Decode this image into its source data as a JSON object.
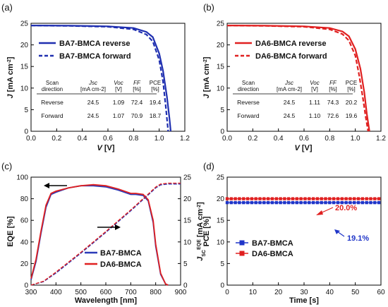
{
  "chart_data": [
    {
      "panel": "(a)",
      "type": "line",
      "xlabel": "V",
      "xunit": "[V]",
      "ylabel": "J",
      "yunit": "[mA cm",
      "yunit_sup": "-2",
      "yunit_end": "]",
      "xlim": [
        0.0,
        1.2
      ],
      "ylim": [
        0,
        25
      ],
      "xticks": [
        "0.0",
        "0.2",
        "0.4",
        "0.6",
        "0.8",
        "1.0",
        "1.2"
      ],
      "yticks": [
        "0",
        "5",
        "10",
        "15",
        "20",
        "25"
      ],
      "series": [
        {
          "name": "BA7-BMCA reverse",
          "color": "#1f2fb0",
          "dash": false,
          "x": [
            0,
            0.3,
            0.6,
            0.8,
            0.9,
            0.95,
            1.0,
            1.03,
            1.06,
            1.08,
            1.09
          ],
          "y": [
            24.5,
            24.45,
            24.3,
            23.9,
            23.0,
            21.8,
            18.0,
            14.0,
            8.0,
            3.0,
            0
          ]
        },
        {
          "name": "BA7-BMCA forward",
          "color": "#1f2fb0",
          "dash": true,
          "x": [
            0,
            0.3,
            0.6,
            0.8,
            0.9,
            0.95,
            1.0,
            1.03,
            1.05,
            1.07
          ],
          "y": [
            24.5,
            24.4,
            24.2,
            23.6,
            22.4,
            20.8,
            16.5,
            11.5,
            6.0,
            0
          ]
        }
      ],
      "table": {
        "headers": [
          "Scan direction",
          "J_SC [mA cm-2]",
          "V_OC [V]",
          "FF [%]",
          "PCE [%]"
        ],
        "head_lines": [
          [
            "Scan",
            "direction"
          ],
          [
            "Jsc",
            "[mA cm-2]"
          ],
          [
            "Voc",
            "[V]"
          ],
          [
            "FF",
            "[%]"
          ],
          [
            "PCE",
            "[%]"
          ]
        ],
        "rows": [
          [
            "Reverse",
            "24.5",
            "1.09",
            "72.4",
            "19.4"
          ],
          [
            "Forward",
            "24.5",
            "1.07",
            "70.9",
            "18.7"
          ]
        ]
      }
    },
    {
      "panel": "(b)",
      "type": "line",
      "xlabel": "V",
      "xunit": "[V]",
      "ylabel": "J",
      "yunit": "[mA cm",
      "yunit_sup": "-2",
      "yunit_end": "]",
      "xlim": [
        0.0,
        1.2
      ],
      "ylim": [
        0,
        25
      ],
      "xticks": [
        "0.0",
        "0.2",
        "0.4",
        "0.6",
        "0.8",
        "1.0",
        "1.2"
      ],
      "yticks": [
        "0",
        "5",
        "10",
        "15",
        "20",
        "25"
      ],
      "series": [
        {
          "name": "DA6-BMCA reverse",
          "color": "#e02020",
          "dash": false,
          "x": [
            0,
            0.3,
            0.6,
            0.8,
            0.9,
            0.95,
            1.0,
            1.04,
            1.07,
            1.09,
            1.11
          ],
          "y": [
            24.5,
            24.45,
            24.3,
            23.9,
            23.1,
            22.0,
            19.0,
            14.5,
            9.0,
            4.0,
            0
          ]
        },
        {
          "name": "DA6-BMCA forward",
          "color": "#e02020",
          "dash": true,
          "x": [
            0,
            0.3,
            0.6,
            0.8,
            0.9,
            0.95,
            1.0,
            1.03,
            1.06,
            1.08,
            1.1
          ],
          "y": [
            24.5,
            24.4,
            24.2,
            23.6,
            22.5,
            21.0,
            17.5,
            13.0,
            7.5,
            3.5,
            0
          ]
        }
      ],
      "table": {
        "headers": [
          "Scan direction",
          "J_SC [mA cm-2]",
          "V_OC [V]",
          "FF [%]",
          "PCE [%]"
        ],
        "head_lines": [
          [
            "Scan",
            "direction"
          ],
          [
            "Jsc",
            "[mA cm-2]"
          ],
          [
            "Voc",
            "[V]"
          ],
          [
            "FF",
            "[%]"
          ],
          [
            "PCE",
            "[%]"
          ]
        ],
        "rows": [
          [
            "Reverse",
            "24.5",
            "1.11",
            "74.3",
            "20.2"
          ],
          [
            "Forward",
            "24.5",
            "1.10",
            "72.6",
            "19.6"
          ]
        ]
      }
    },
    {
      "panel": "(c)",
      "type": "line",
      "xlabel": "Wavelength [nm]",
      "ylabel": "EQE [%]",
      "y2label": "J",
      "y2label_sub": "SC",
      "y2label_sup": "EQE",
      "y2unit": "[mA cm",
      "y2unit_sup": "-2",
      "y2unit_end": "]",
      "xlim": [
        300,
        900
      ],
      "ylim": [
        0,
        100
      ],
      "y2lim": [
        0,
        25
      ],
      "xticks": [
        "300",
        "400",
        "500",
        "600",
        "700",
        "800",
        "900"
      ],
      "yticks": [
        "0",
        "20",
        "40",
        "60",
        "80",
        "100"
      ],
      "y2ticks": [
        "0",
        "5",
        "10",
        "15",
        "20",
        "25"
      ],
      "series": [
        {
          "name": "BA7-BMCA",
          "color": "#2a3ab8",
          "axis": "left",
          "x": [
            300,
            320,
            340,
            360,
            380,
            400,
            450,
            500,
            550,
            600,
            650,
            700,
            720,
            750,
            770,
            790,
            800,
            820,
            840,
            850
          ],
          "y": [
            5,
            22,
            48,
            72,
            84,
            86,
            90,
            92,
            92,
            91,
            88,
            84,
            84,
            83,
            78,
            58,
            36,
            10,
            1,
            0
          ]
        },
        {
          "name": "DA6-BMCA",
          "color": "#e02020",
          "axis": "left",
          "x": [
            300,
            320,
            340,
            360,
            380,
            400,
            450,
            500,
            550,
            600,
            650,
            700,
            720,
            750,
            770,
            790,
            800,
            820,
            840,
            850
          ],
          "y": [
            6,
            24,
            50,
            74,
            85,
            87,
            90,
            92,
            93,
            92,
            89,
            85,
            85,
            84,
            79,
            60,
            38,
            11,
            1,
            0
          ]
        },
        {
          "name": "BA7-BMCA integrated J_SC",
          "color": "#2a3ab8",
          "axis": "right",
          "x": [
            300,
            350,
            400,
            500,
            600,
            700,
            780,
            800,
            820,
            850,
            900
          ],
          "y": [
            0,
            0.8,
            2.8,
            7.4,
            12.2,
            17.2,
            21.4,
            22.5,
            23.2,
            23.4,
            23.4
          ]
        },
        {
          "name": "DA6-BMCA integrated J_SC",
          "color": "#e02020",
          "axis": "right",
          "x": [
            300,
            350,
            400,
            500,
            600,
            700,
            780,
            800,
            820,
            850,
            900
          ],
          "y": [
            0,
            0.9,
            3.0,
            7.6,
            12.4,
            17.4,
            21.6,
            22.7,
            23.4,
            23.6,
            23.6
          ]
        }
      ]
    },
    {
      "panel": "(d)",
      "type": "scatter",
      "xlabel": "Time [s]",
      "ylabel": "PCE [%]",
      "xlim": [
        0,
        60
      ],
      "ylim": [
        0,
        25
      ],
      "xticks": [
        "0",
        "10",
        "20",
        "30",
        "40",
        "50",
        "60"
      ],
      "yticks": [
        "0",
        "5",
        "10",
        "15",
        "20",
        "25"
      ],
      "series": [
        {
          "name": "BA7-BMCA",
          "color": "#1f35c8",
          "marker": "square",
          "value": 19.1,
          "annotation": "19.1%"
        },
        {
          "name": "DA6-BMCA",
          "color": "#e02020",
          "marker": "square",
          "value": 20.0,
          "annotation": "20.0%"
        }
      ]
    }
  ]
}
